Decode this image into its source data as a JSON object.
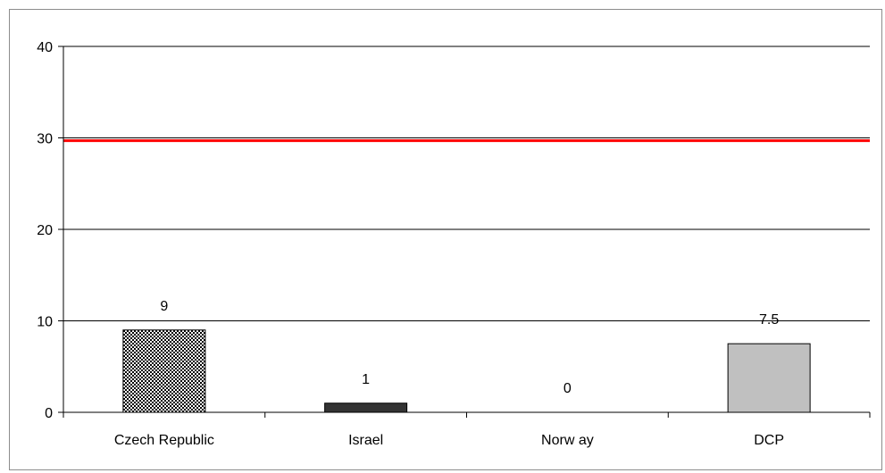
{
  "chart_data": {
    "type": "bar",
    "categories": [
      "Czech Republic",
      "Israel",
      "Norw ay",
      "DCP"
    ],
    "values": [
      9,
      1,
      0,
      7.5
    ],
    "data_labels": [
      "9",
      "1",
      "0",
      "7.5"
    ],
    "ylim": [
      0,
      40
    ],
    "yticks": [
      0,
      10,
      20,
      30,
      40
    ],
    "ytick_labels": [
      "0",
      "10",
      "20",
      "30",
      "40"
    ],
    "reference_line": {
      "value": 29.7,
      "color": "#ff0000"
    },
    "bar_fills": [
      "checker",
      "#333333",
      "#ffffff",
      "#c0c0c0"
    ],
    "grid": true,
    "legend": "none"
  }
}
